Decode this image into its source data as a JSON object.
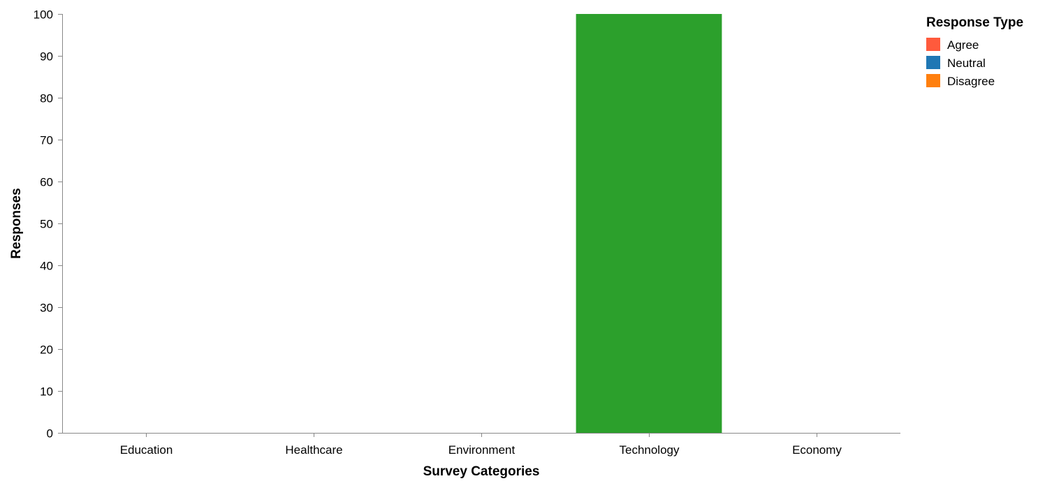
{
  "chart_data": {
    "type": "bar",
    "stacked": true,
    "categories": [
      "Education",
      "Healthcare",
      "Environment",
      "Technology",
      "Economy"
    ],
    "series": [
      {
        "name": "Agree",
        "color": "#ff5a3c",
        "values": [
          0,
          0,
          0,
          0,
          0
        ]
      },
      {
        "name": "Neutral",
        "color": "#1f77b4",
        "values": [
          0,
          0,
          0,
          0,
          0
        ]
      },
      {
        "name": "Disagree",
        "color": "#ff7f0e",
        "values": [
          0,
          0,
          0,
          0,
          0
        ]
      },
      {
        "name": "",
        "color": "#2ca02c",
        "values": [
          0,
          0,
          0,
          100,
          0
        ]
      }
    ],
    "title": "",
    "xlabel": "Survey Categories",
    "ylabel": "Responses",
    "ylim": [
      0,
      100
    ],
    "yticks": [
      0,
      10,
      20,
      30,
      40,
      50,
      60,
      70,
      80,
      90,
      100
    ],
    "grid": false,
    "legend": {
      "title": "Response Type",
      "placement": "top-right",
      "entries": [
        "Agree",
        "Neutral",
        "Disagree"
      ]
    }
  }
}
